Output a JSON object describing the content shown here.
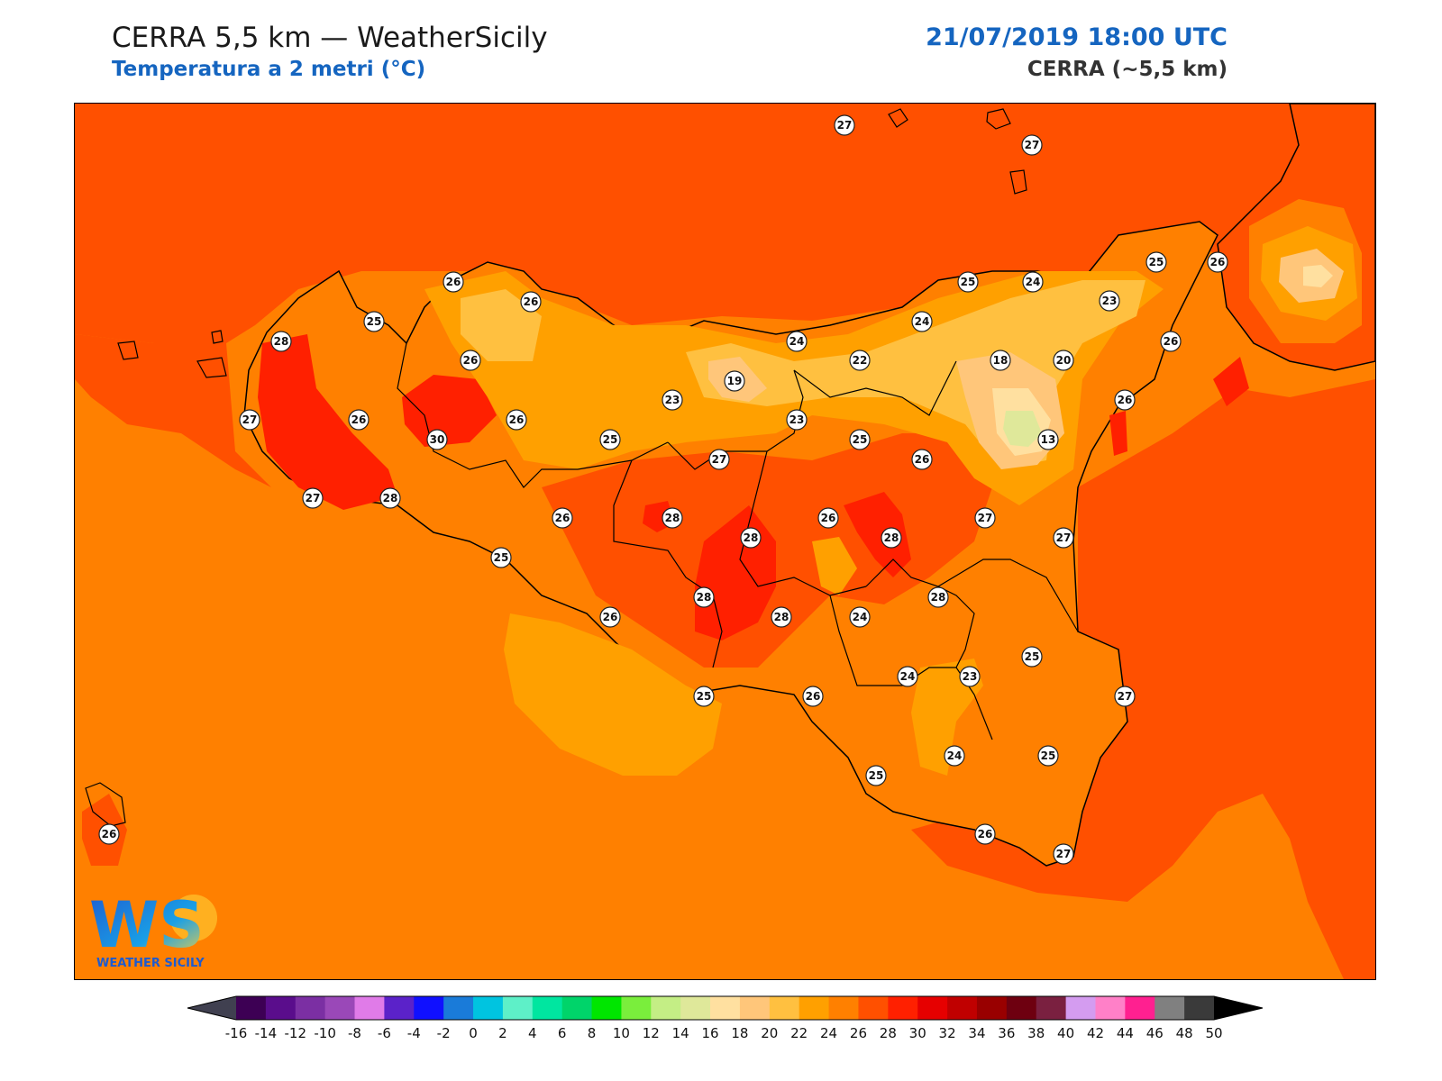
{
  "header": {
    "title": "CERRA 5,5 km — WeatherSicily",
    "subtitle": "Temperatura a 2 metri (°C)",
    "datetime": "21/07/2019 18:00 UTC",
    "model": "CERRA (~5,5 km)"
  },
  "logo": {
    "initials": "WS",
    "name": "WEATHER SICILY"
  },
  "colorbar": {
    "ticks": [
      "-16",
      "-14",
      "-12",
      "-10",
      "-8",
      "-6",
      "-4",
      "-2",
      "0",
      "2",
      "4",
      "6",
      "8",
      "10",
      "12",
      "14",
      "16",
      "18",
      "20",
      "22",
      "24",
      "26",
      "28",
      "30",
      "32",
      "34",
      "36",
      "38",
      "40",
      "42",
      "44",
      "46",
      "48",
      "50"
    ],
    "colors": [
      "#3d0054",
      "#5a0d8c",
      "#7b2fa3",
      "#9a48b8",
      "#e07be8",
      "#5b22c9",
      "#1010ff",
      "#1a7bd9",
      "#00c4e0",
      "#5ef0c8",
      "#00e6a0",
      "#00d46a",
      "#00e600",
      "#7aee3c",
      "#c4ee85",
      "#dfe89a",
      "#ffe0a0",
      "#ffc67a",
      "#ffc040",
      "#ffa000",
      "#ff8000",
      "#ff5000",
      "#ff2000",
      "#e60000",
      "#c00000",
      "#990000",
      "#6e0010",
      "#7a2040",
      "#d49cf0",
      "#ff80c8",
      "#ff2090",
      "#808080",
      "#3a3a3a"
    ],
    "under_color": "#404050",
    "over_color": "#000000"
  },
  "stations": [
    {
      "v": "27"
    },
    {
      "v": "27"
    },
    {
      "v": "26"
    },
    {
      "v": "25"
    },
    {
      "v": "26"
    },
    {
      "v": "24"
    },
    {
      "v": "25"
    },
    {
      "v": "24"
    },
    {
      "v": "23"
    },
    {
      "v": "26"
    },
    {
      "v": "28"
    },
    {
      "v": "25"
    },
    {
      "v": "26"
    },
    {
      "v": "24"
    },
    {
      "v": "22"
    },
    {
      "v": "18"
    },
    {
      "v": "20"
    },
    {
      "v": "19"
    },
    {
      "v": "26"
    },
    {
      "v": "26"
    },
    {
      "v": "27"
    },
    {
      "v": "26"
    },
    {
      "v": "30"
    },
    {
      "v": "26"
    },
    {
      "v": "23"
    },
    {
      "v": "23"
    },
    {
      "v": "25"
    },
    {
      "v": "25"
    },
    {
      "v": "13"
    },
    {
      "v": "27"
    },
    {
      "v": "26"
    },
    {
      "v": "27"
    },
    {
      "v": "28"
    },
    {
      "v": "26"
    },
    {
      "v": "28"
    },
    {
      "v": "28"
    },
    {
      "v": "26"
    },
    {
      "v": "28"
    },
    {
      "v": "27"
    },
    {
      "v": "27"
    },
    {
      "v": "25"
    },
    {
      "v": "28"
    },
    {
      "v": "28"
    },
    {
      "v": "28"
    },
    {
      "v": "24"
    },
    {
      "v": "26"
    },
    {
      "v": "25"
    },
    {
      "v": "24"
    },
    {
      "v": "23"
    },
    {
      "v": "25"
    },
    {
      "v": "27"
    },
    {
      "v": "26"
    },
    {
      "v": "24"
    },
    {
      "v": "25"
    },
    {
      "v": "25"
    },
    {
      "v": "26"
    },
    {
      "v": "27"
    },
    {
      "v": "26"
    }
  ]
}
